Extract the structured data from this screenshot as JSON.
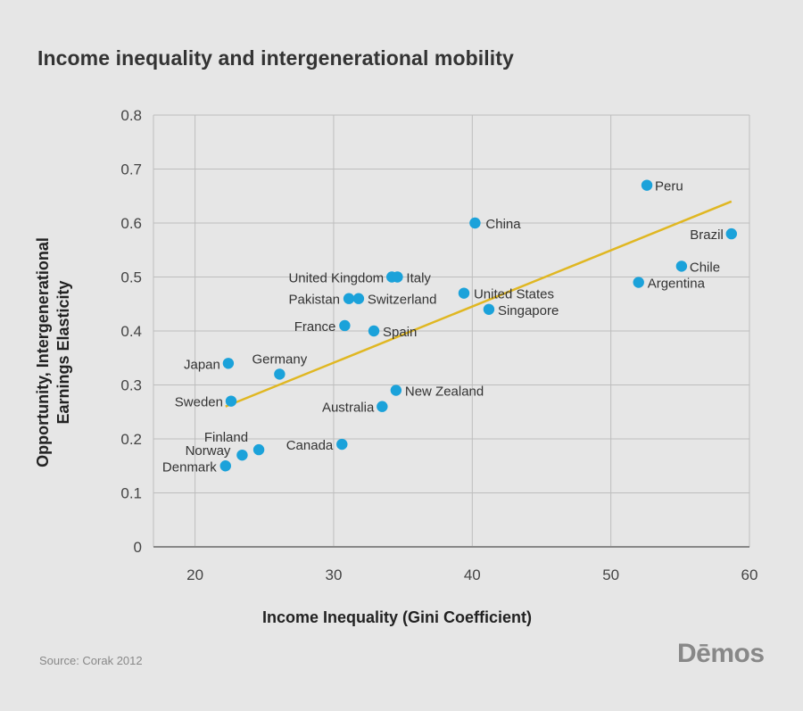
{
  "title": "Income inequality and intergenerational mobility",
  "source": "Source: Corak 2012",
  "logo": "Dēmos",
  "colors": {
    "point": "#1ba2da",
    "trendline": "#e0b722",
    "grid": "#bdbdbd",
    "axis": "#888888",
    "background": "#e6e6e6"
  },
  "chart_data": {
    "type": "scatter",
    "title": "Income inequality and intergenerational mobility",
    "xlabel": "Income Inequality (Gini Coefficient)",
    "ylabel_lines": [
      "Opportunity, Intergenerational",
      "Earnings Elasticity"
    ],
    "xlim": [
      17,
      60
    ],
    "ylim": [
      0,
      0.8
    ],
    "xticks": [
      20,
      30,
      40,
      50,
      60
    ],
    "yticks": [
      0,
      0.1,
      0.2,
      0.3,
      0.4,
      0.5,
      0.6,
      0.7,
      0.8
    ],
    "ytick_labels": [
      "0",
      "0.1",
      "0.2",
      "0.3",
      "0.4",
      "0.5",
      "0.6",
      "0.7",
      "0.8"
    ],
    "grid": "vertical and horizontal",
    "points": [
      {
        "label": "Peru",
        "x": 52.6,
        "y": 0.67
      },
      {
        "label": "China",
        "x": 40.2,
        "y": 0.6
      },
      {
        "label": "Brazil",
        "x": 58.7,
        "y": 0.58
      },
      {
        "label": "Chile",
        "x": 55.1,
        "y": 0.52
      },
      {
        "label": "United Kingdom",
        "x": 34.2,
        "y": 0.5
      },
      {
        "label": "Italy",
        "x": 34.6,
        "y": 0.5
      },
      {
        "label": "Argentina",
        "x": 52.0,
        "y": 0.49
      },
      {
        "label": "United States",
        "x": 39.4,
        "y": 0.47
      },
      {
        "label": "Pakistan",
        "x": 31.1,
        "y": 0.46
      },
      {
        "label": "Switzerland",
        "x": 31.8,
        "y": 0.46
      },
      {
        "label": "Singapore",
        "x": 41.2,
        "y": 0.44
      },
      {
        "label": "France",
        "x": 30.8,
        "y": 0.41
      },
      {
        "label": "Spain",
        "x": 32.9,
        "y": 0.4
      },
      {
        "label": "Japan",
        "x": 22.4,
        "y": 0.34
      },
      {
        "label": "Germany",
        "x": 26.1,
        "y": 0.32
      },
      {
        "label": "New Zealand",
        "x": 34.5,
        "y": 0.29
      },
      {
        "label": "Sweden",
        "x": 22.6,
        "y": 0.27
      },
      {
        "label": "Australia",
        "x": 33.5,
        "y": 0.26
      },
      {
        "label": "Canada",
        "x": 30.6,
        "y": 0.19
      },
      {
        "label": "Finland",
        "x": 24.6,
        "y": 0.18
      },
      {
        "label": "Norway",
        "x": 23.4,
        "y": 0.17
      },
      {
        "label": "Denmark",
        "x": 22.2,
        "y": 0.15
      }
    ],
    "trendline": {
      "x": [
        22.2,
        58.7
      ],
      "y": [
        0.26,
        0.64
      ]
    }
  }
}
